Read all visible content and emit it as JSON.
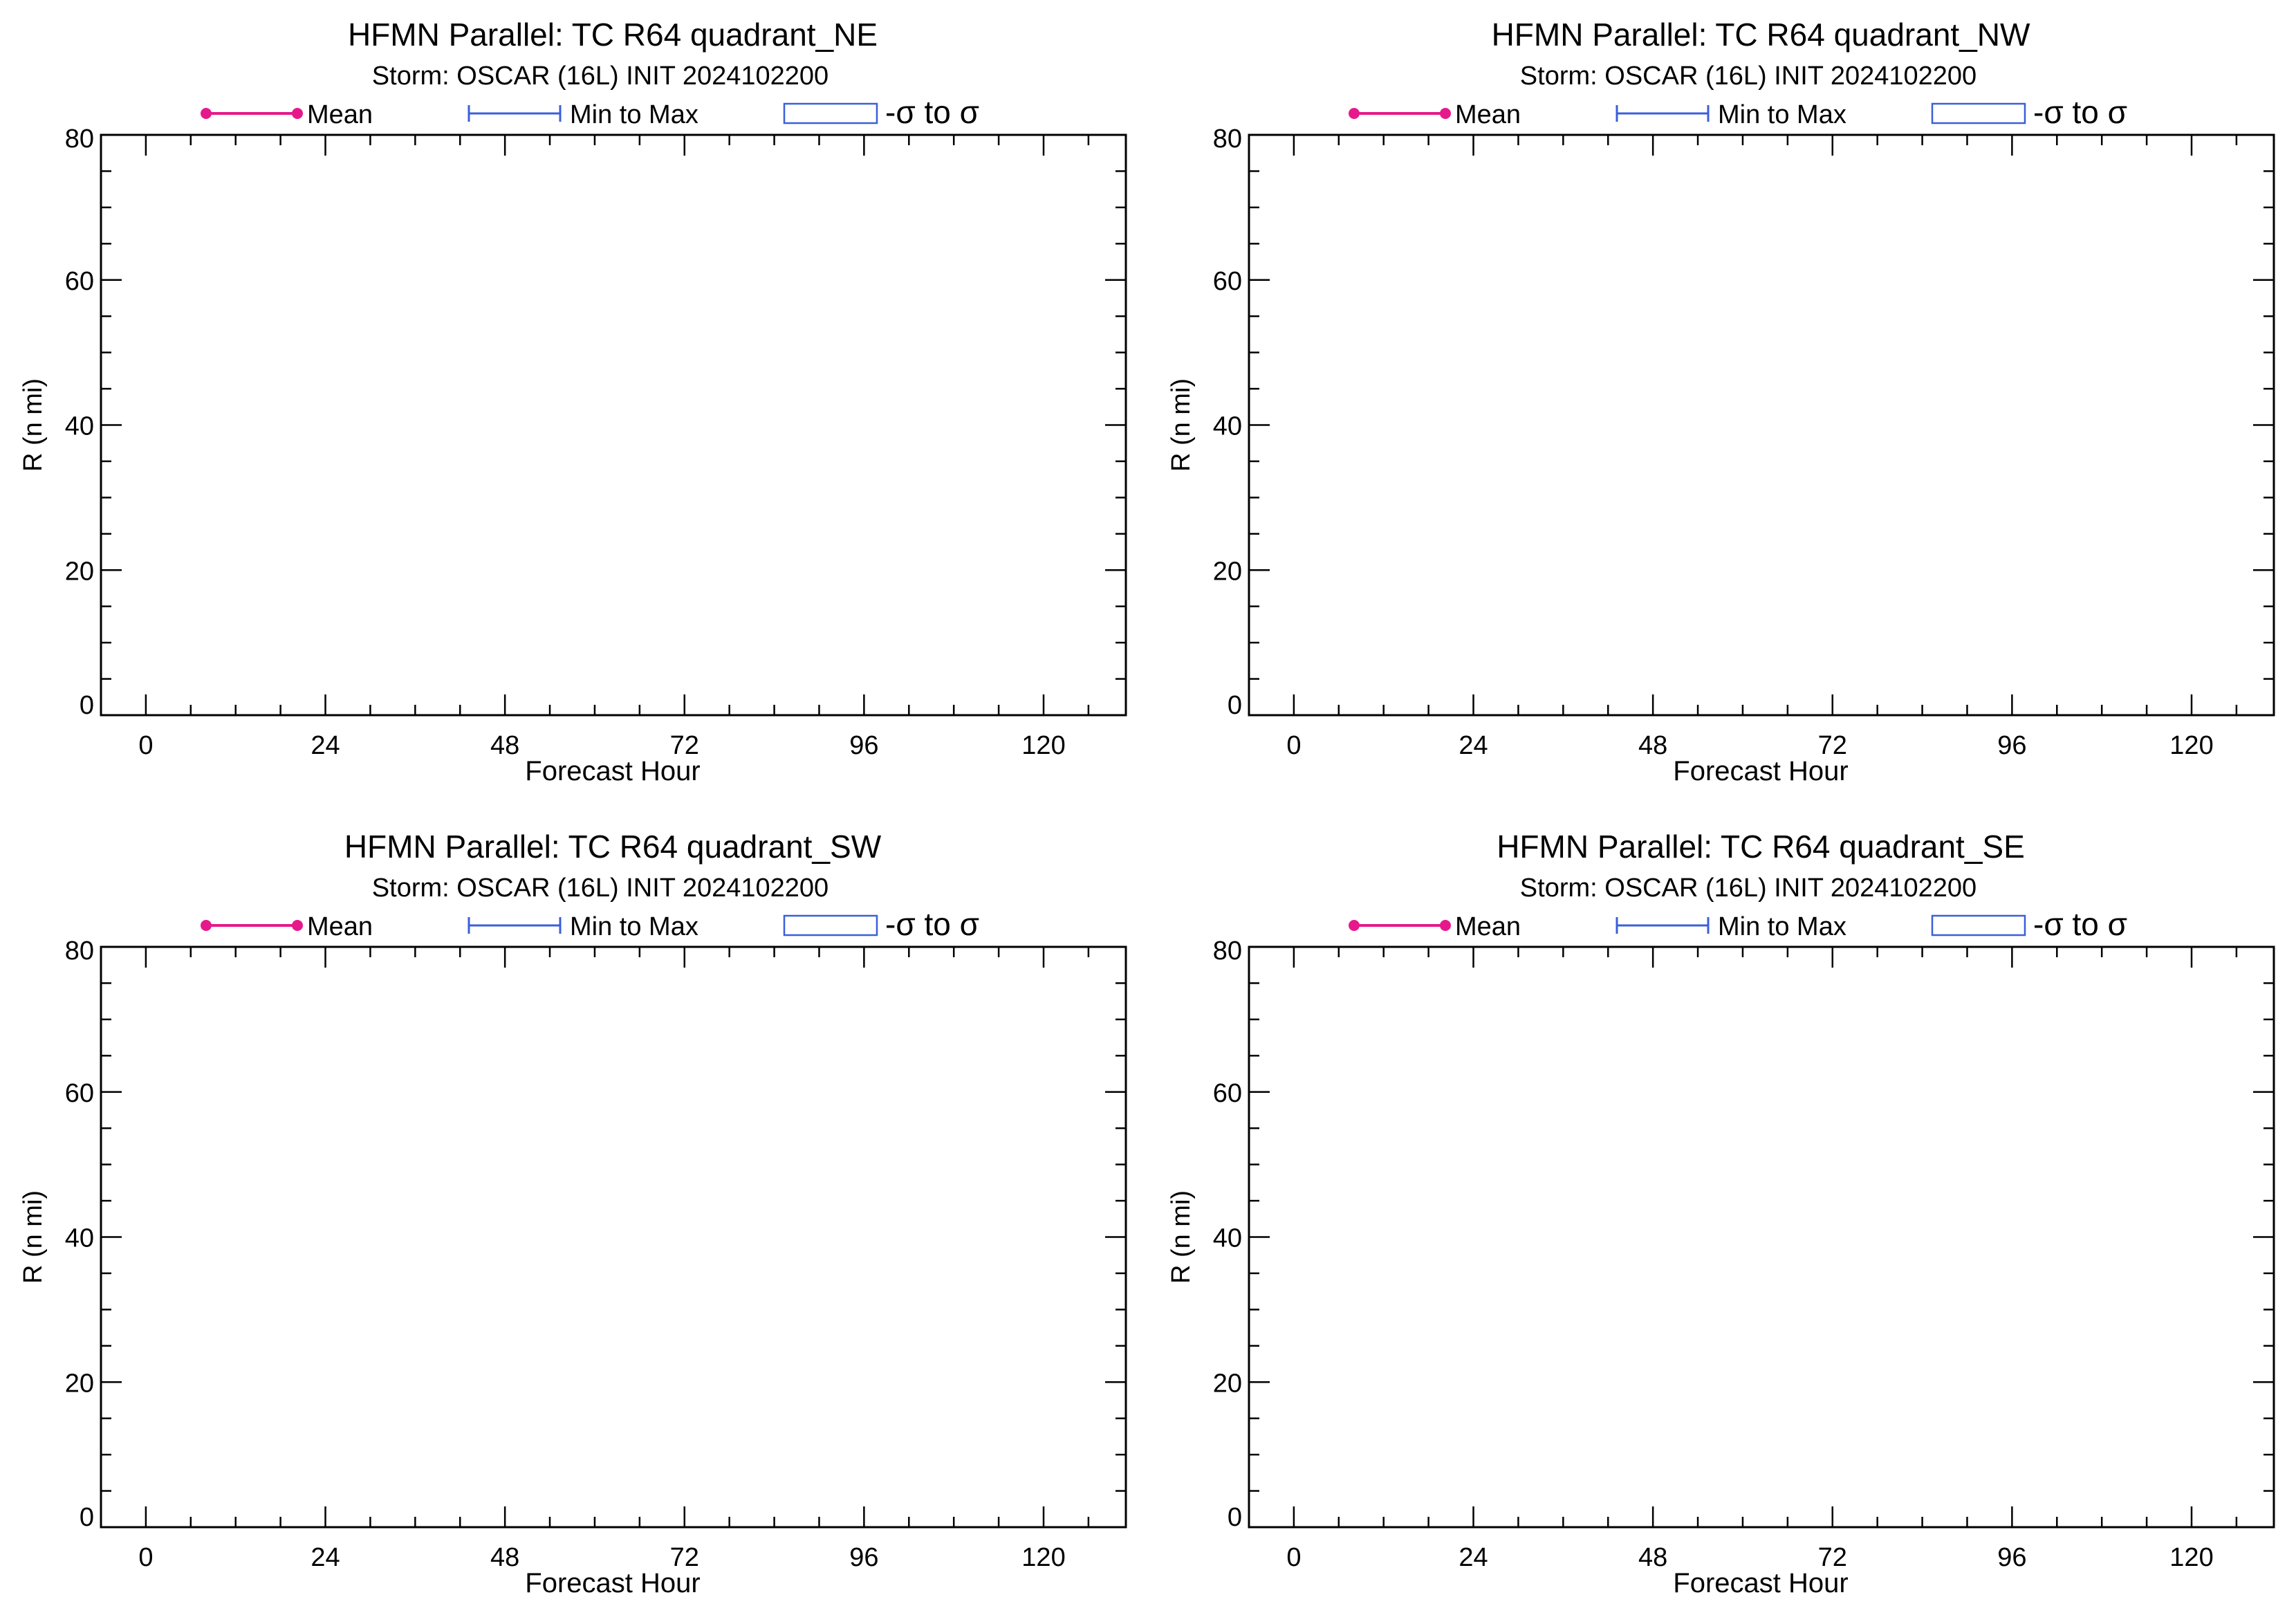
{
  "colors": {
    "mean": "#e6198c",
    "minmax": "#3a5fd9",
    "sigma_box": "#3a5fd9",
    "axis": "#000000",
    "background": "#ffffff"
  },
  "legend": {
    "mean_label": "Mean",
    "minmax_label": "Min to Max",
    "sigma_label": "-σ to σ"
  },
  "chart_data": [
    {
      "type": "line",
      "title": "HFMN Parallel: TC  R64 quadrant_NE",
      "subtitle": "Storm: OSCAR (16L) INIT 2024102200",
      "xlabel": "Forecast Hour",
      "ylabel": "R (n mi)",
      "xlim": [
        -6,
        131
      ],
      "ylim": [
        0,
        80
      ],
      "xticks": [
        0,
        24,
        48,
        72,
        96,
        120
      ],
      "yticks": [
        0,
        20,
        40,
        60,
        80
      ],
      "x_minor_step": 6,
      "y_minor_step": 5,
      "legend_position": "top",
      "series": []
    },
    {
      "type": "line",
      "title": "HFMN Parallel: TC  R64 quadrant_NW",
      "subtitle": "Storm: OSCAR (16L) INIT 2024102200",
      "xlabel": "Forecast Hour",
      "ylabel": "R (n mi)",
      "xlim": [
        -6,
        131
      ],
      "ylim": [
        0,
        80
      ],
      "xticks": [
        0,
        24,
        48,
        72,
        96,
        120
      ],
      "yticks": [
        0,
        20,
        40,
        60,
        80
      ],
      "x_minor_step": 6,
      "y_minor_step": 5,
      "legend_position": "top",
      "series": []
    },
    {
      "type": "line",
      "title": "HFMN Parallel: TC  R64 quadrant_SW",
      "subtitle": "Storm: OSCAR (16L) INIT 2024102200",
      "xlabel": "Forecast Hour",
      "ylabel": "R (n mi)",
      "xlim": [
        -6,
        131
      ],
      "ylim": [
        0,
        80
      ],
      "xticks": [
        0,
        24,
        48,
        72,
        96,
        120
      ],
      "yticks": [
        0,
        20,
        40,
        60,
        80
      ],
      "x_minor_step": 6,
      "y_minor_step": 5,
      "legend_position": "top",
      "series": []
    },
    {
      "type": "line",
      "title": "HFMN Parallel: TC  R64 quadrant_SE",
      "subtitle": "Storm: OSCAR (16L) INIT 2024102200",
      "xlabel": "Forecast Hour",
      "ylabel": "R (n mi)",
      "xlim": [
        -6,
        131
      ],
      "ylim": [
        0,
        80
      ],
      "xticks": [
        0,
        24,
        48,
        72,
        96,
        120
      ],
      "yticks": [
        0,
        20,
        40,
        60,
        80
      ],
      "x_minor_step": 6,
      "y_minor_step": 5,
      "legend_position": "top",
      "series": []
    }
  ]
}
